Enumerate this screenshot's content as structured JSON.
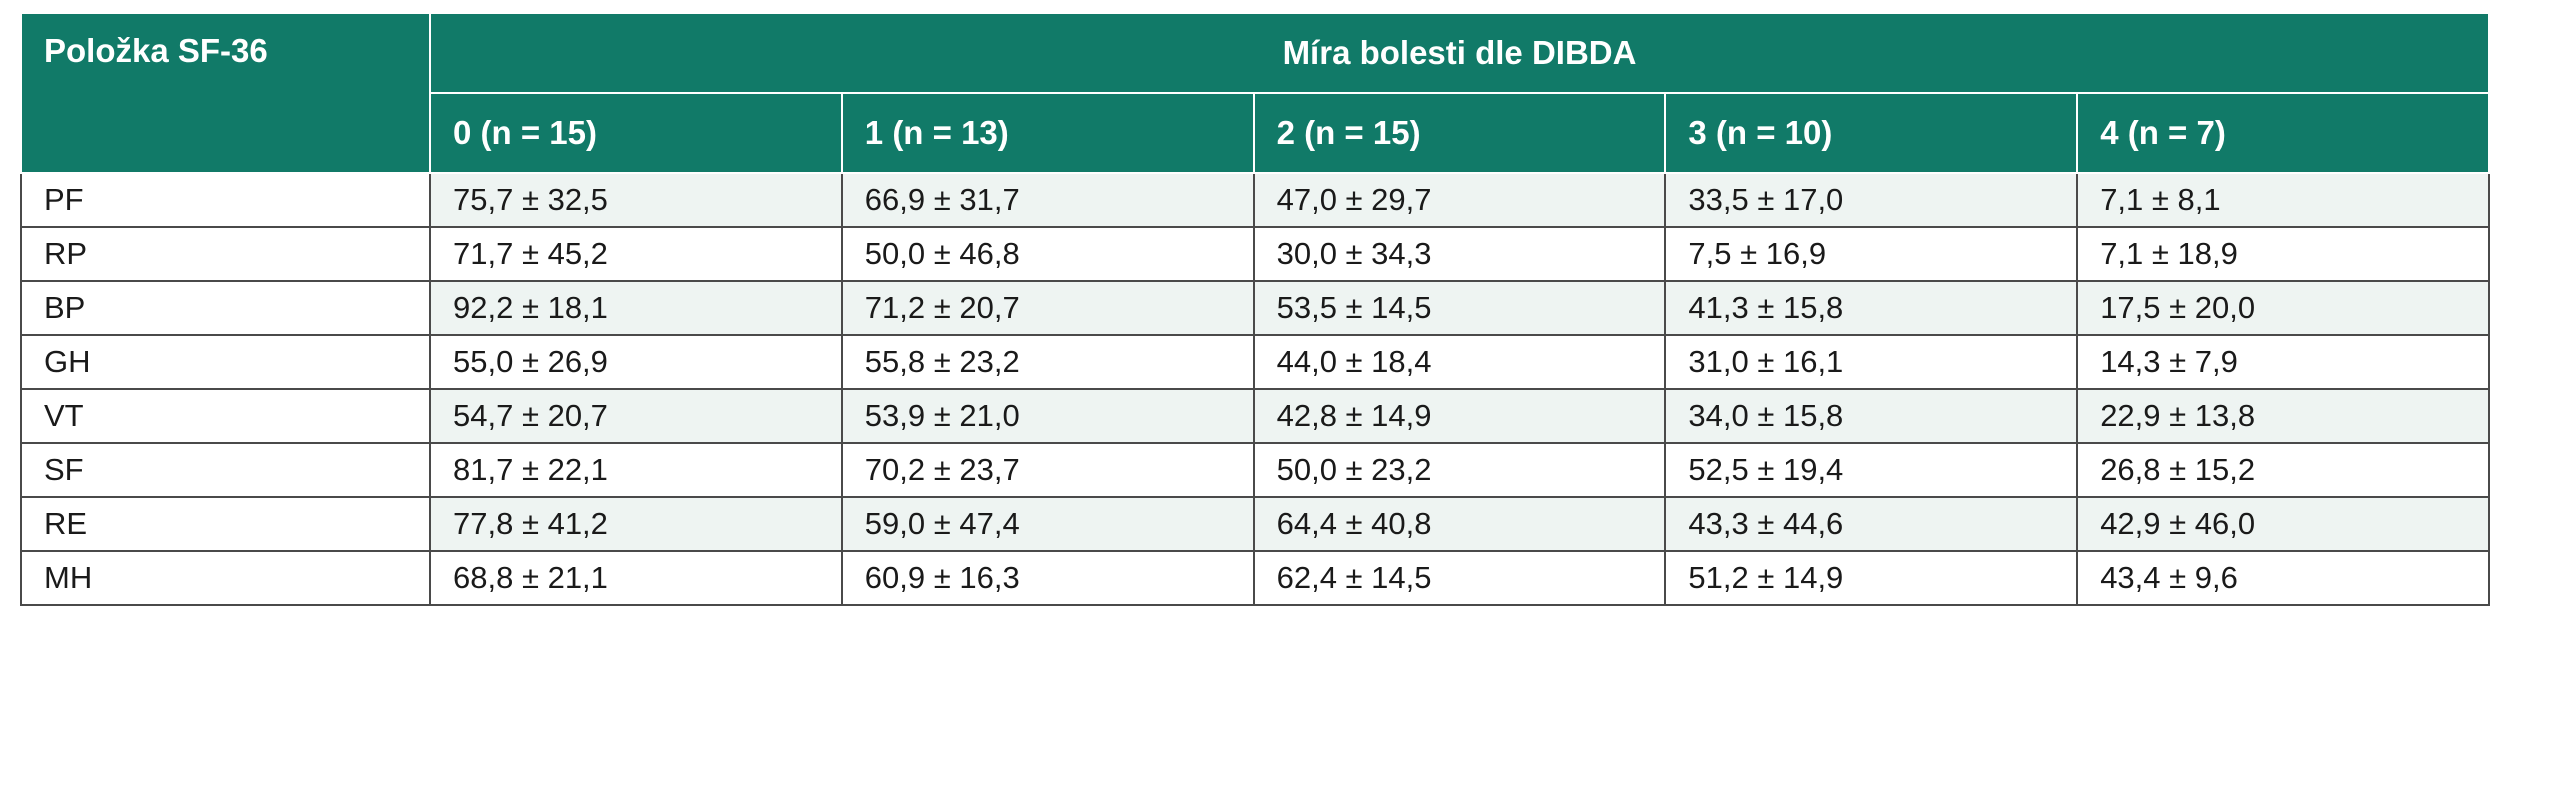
{
  "table": {
    "item_header": "Položka SF-36",
    "group_header": "Míra bolesti dle DIBDA",
    "columns": [
      "0 (n = 15)",
      "1 (n = 13)",
      "2 (n = 15)",
      "3 (n = 10)",
      "4 (n = 7)"
    ],
    "rows": [
      {
        "label": "PF",
        "values": [
          "75,7 ± 32,5",
          "66,9 ± 31,7",
          "47,0 ± 29,7",
          "33,5 ± 17,0",
          "7,1 ± 8,1"
        ]
      },
      {
        "label": "RP",
        "values": [
          "71,7 ± 45,2",
          "50,0 ± 46,8",
          "30,0 ± 34,3",
          "7,5 ± 16,9",
          "7,1 ± 18,9"
        ]
      },
      {
        "label": "BP",
        "values": [
          "92,2 ± 18,1",
          "71,2 ± 20,7",
          "53,5 ± 14,5",
          "41,3 ± 15,8",
          "17,5 ± 20,0"
        ]
      },
      {
        "label": "GH",
        "values": [
          "55,0 ± 26,9",
          "55,8 ± 23,2",
          "44,0 ± 18,4",
          "31,0 ± 16,1",
          "14,3 ± 7,9"
        ]
      },
      {
        "label": "VT",
        "values": [
          "54,7 ± 20,7",
          "53,9 ± 21,0",
          "42,8 ± 14,9",
          "34,0 ± 15,8",
          "22,9 ± 13,8"
        ]
      },
      {
        "label": "SF",
        "values": [
          "81,7 ± 22,1",
          "70,2 ± 23,7",
          "50,0 ± 23,2",
          "52,5 ± 19,4",
          "26,8 ± 15,2"
        ]
      },
      {
        "label": "RE",
        "values": [
          "77,8 ± 41,2",
          "59,0 ± 47,4",
          "64,4 ± 40,8",
          "43,3 ± 44,6",
          "42,9 ± 46,0"
        ]
      },
      {
        "label": "MH",
        "values": [
          "68,8 ± 21,1",
          "60,9 ± 16,3",
          "62,4 ± 14,5",
          "51,2 ± 14,9",
          "43,4 ± 9,6"
        ]
      }
    ],
    "colors": {
      "header_bg": "#117a68",
      "header_text": "#ffffff",
      "shaded_row_bg": "#eef4f2"
    }
  }
}
